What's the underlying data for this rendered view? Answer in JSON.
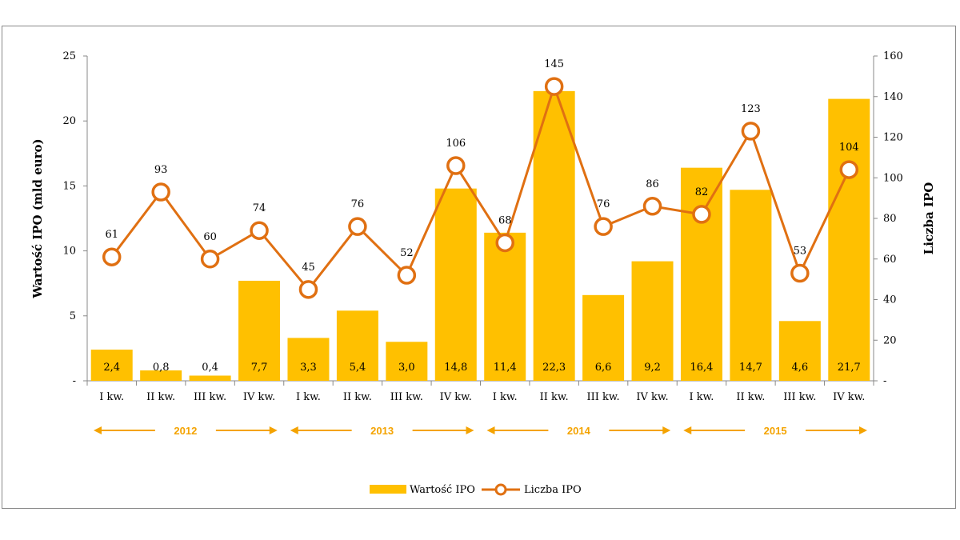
{
  "chart_data": {
    "type": "bar+line",
    "title": "",
    "categories": [
      "I kw.",
      "II kw.",
      "III kw.",
      "IV kw.",
      "I kw.",
      "II kw.",
      "III kw.",
      "IV kw.",
      "I kw.",
      "II kw.",
      "III kw.",
      "IV kw.",
      "I kw.",
      "II kw.",
      "III kw.",
      "IV kw."
    ],
    "years": [
      {
        "label": "2012",
        "from": 0,
        "to": 3
      },
      {
        "label": "2013",
        "from": 4,
        "to": 7
      },
      {
        "label": "2014",
        "from": 8,
        "to": 11
      },
      {
        "label": "2015",
        "from": 12,
        "to": 15
      }
    ],
    "series": [
      {
        "name": "Wartość IPO",
        "kind": "bar",
        "axis": "left",
        "values": [
          2.4,
          0.8,
          0.4,
          7.7,
          3.3,
          5.4,
          3.0,
          14.8,
          11.4,
          22.3,
          6.6,
          9.2,
          16.4,
          14.7,
          4.6,
          21.7
        ],
        "labels": [
          "2,4",
          "0,8",
          "0,4",
          "7,7",
          "3,3",
          "5,4",
          "3,0",
          "14,8",
          "11,4",
          "22,3",
          "6,6",
          "9,2",
          "16,4",
          "14,7",
          "4,6",
          "21,7"
        ]
      },
      {
        "name": "Liczba IPO",
        "kind": "line",
        "axis": "right",
        "values": [
          61,
          93,
          60,
          74,
          45,
          76,
          52,
          106,
          68,
          145,
          76,
          86,
          82,
          123,
          53,
          104
        ],
        "labels": [
          "61",
          "93",
          "60",
          "74",
          "45",
          "76",
          "52",
          "106",
          "68",
          "145",
          "76",
          "86",
          "82",
          "123",
          "53",
          "104"
        ]
      }
    ],
    "y_left": {
      "label": "Wartość IPO (mld euro)",
      "min": 0,
      "max": 25,
      "ticks": [
        "-",
        "5",
        "10",
        "15",
        "20",
        "25"
      ],
      "tick_values": [
        0,
        5,
        10,
        15,
        20,
        25
      ]
    },
    "y_right": {
      "label": "Liczba IPO",
      "min": 0,
      "max": 160,
      "ticks": [
        "-",
        "20",
        "40",
        "60",
        "80",
        "100",
        "120",
        "140",
        "160"
      ],
      "tick_values": [
        0,
        20,
        40,
        60,
        80,
        100,
        120,
        140,
        160
      ]
    },
    "legend": {
      "position": "bottom",
      "items": [
        "Wartość IPO",
        "Liczba IPO"
      ]
    },
    "colors": {
      "bar": "#FFC000",
      "line": "#E07012",
      "year": "#F4A300",
      "axis": "#888888"
    },
    "grid": false
  }
}
